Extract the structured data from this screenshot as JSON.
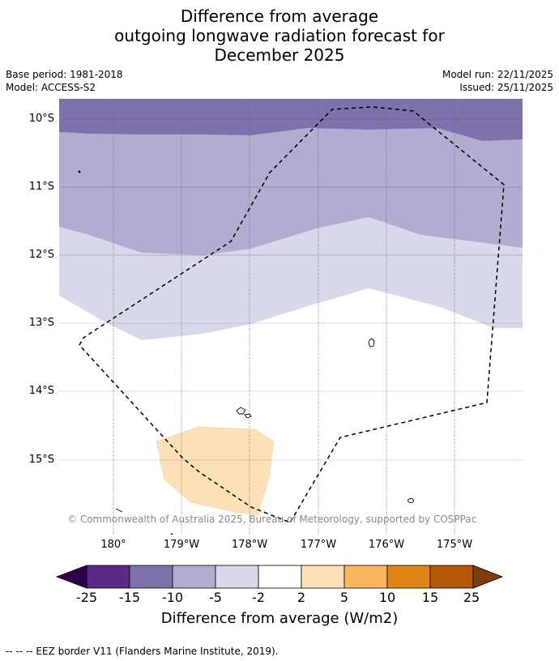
{
  "title": {
    "line1": "Difference from average",
    "line2": "outgoing longwave radiation forecast for",
    "line3": "December 2025"
  },
  "meta": {
    "base_period": "Base period: 1981-2018",
    "model": "Model: ACCESS-S2",
    "model_run": "Model run: 22/11/2025",
    "issued": "Issued: 25/11/2025"
  },
  "map": {
    "lat_labels": [
      "10°S",
      "11°S",
      "12°S",
      "13°S",
      "14°S",
      "15°S"
    ],
    "lon_labels": [
      "180°",
      "179°W",
      "178°W",
      "177°W",
      "176°W",
      "175°W"
    ],
    "copyright": "© Commonwealth of Australia 2025, Bureau of Meteorology, supported by COSPPac",
    "features": [
      "OLR anomaly shading",
      "EEZ border",
      "islands"
    ]
  },
  "colorbar": {
    "ticks": [
      "-25",
      "-15",
      "-10",
      "-5",
      "-2",
      "2",
      "5",
      "10",
      "15",
      "25"
    ],
    "colors": [
      "#5b2a86",
      "#7f71ab",
      "#b1acd0",
      "#d7d8ea",
      "#ffffff",
      "#fde0b6",
      "#f9b65f",
      "#e08417",
      "#b35806"
    ],
    "under_color": "#2d004b",
    "over_color": "#7f3b08",
    "label": "Difference from average (W/m2)"
  },
  "footer": "--  --  -- EEZ border V11 (Flanders Marine Institute, 2019)."
}
